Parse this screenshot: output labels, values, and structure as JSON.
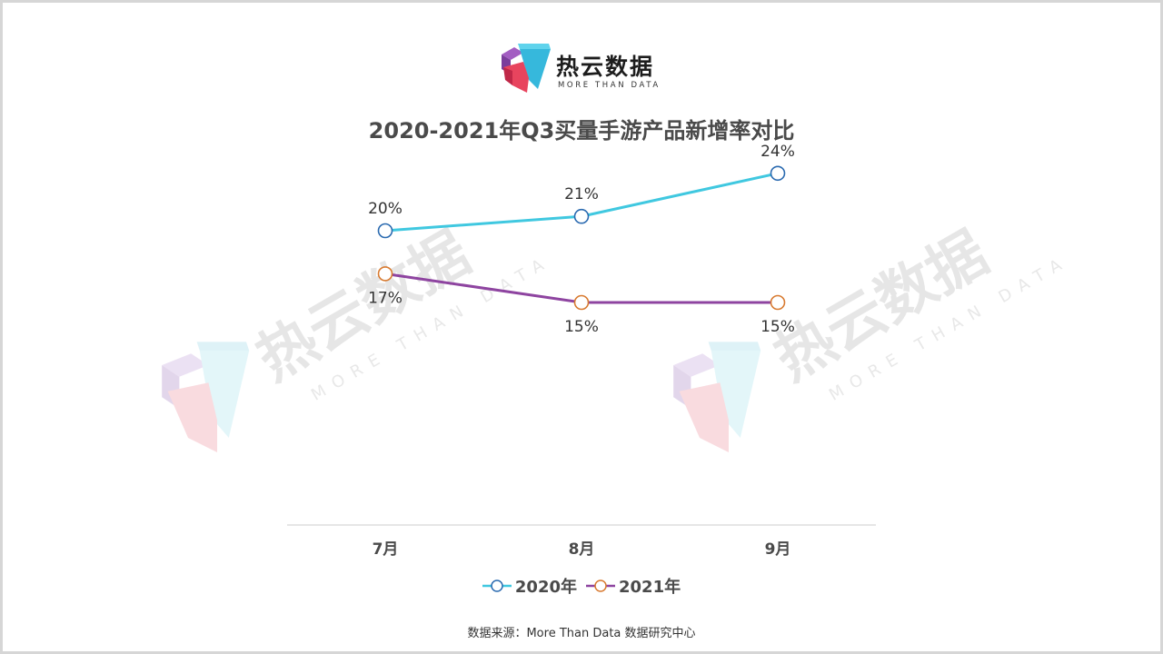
{
  "brand": {
    "name": "热云数据",
    "tagline": "MORE THAN DATA"
  },
  "watermark": {
    "text": "热云数据",
    "tagline": "MORE THAN DATA"
  },
  "chart_data": {
    "type": "line",
    "title": "2020-2021年Q3买量手游产品新增率对比",
    "categories": [
      "7月",
      "8月",
      "9月"
    ],
    "series": [
      {
        "name": "2020年",
        "values": [
          20,
          21,
          24
        ],
        "labels": [
          "20%",
          "21%",
          "24%"
        ],
        "color": "#40c8e0"
      },
      {
        "name": "2021年",
        "values": [
          17,
          15,
          15
        ],
        "labels": [
          "17%",
          "15%",
          "15%"
        ],
        "color": "#8e44a0"
      }
    ],
    "legend_position": "bottom",
    "grid": false
  },
  "source": "数据来源：More Than Data 数据研究中心",
  "colors": {
    "marker_2020_outline": "#2a6ab0",
    "marker_2021_outline": "#d87a30",
    "axis": "#cccccc"
  }
}
